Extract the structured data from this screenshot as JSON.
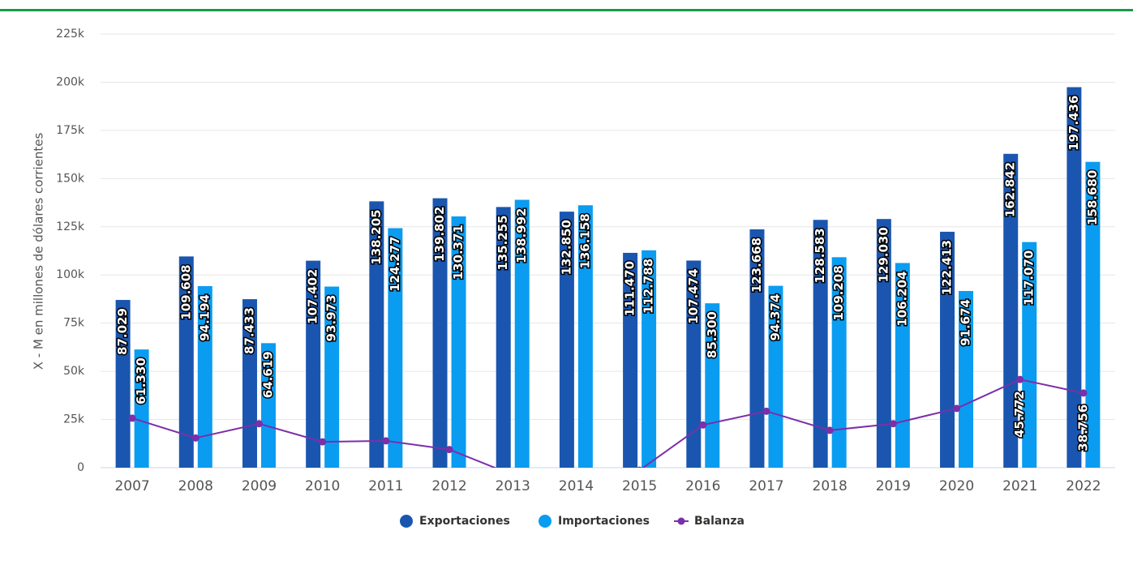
{
  "chart_data": {
    "type": "bar-line",
    "y_axis_label": "X - M en millones de dólares corrientes",
    "categories": [
      "2007",
      "2008",
      "2009",
      "2010",
      "2011",
      "2012",
      "2013",
      "2014",
      "2015",
      "2016",
      "2017",
      "2018",
      "2019",
      "2020",
      "2021",
      "2022"
    ],
    "series": [
      {
        "name": "Exportaciones",
        "type": "bar",
        "color": "#1a56b0",
        "values": [
          87029,
          109608,
          87433,
          107402,
          138205,
          139802,
          135255,
          132850,
          111470,
          107474,
          123668,
          128583,
          129030,
          122413,
          162842,
          197436
        ],
        "value_labels": [
          "87.029",
          "109.608",
          "87.433",
          "107.402",
          "138.205",
          "139.802",
          "135.255",
          "132.850",
          "111.470",
          "107.474",
          "123.668",
          "128.583",
          "129.030",
          "122.413",
          "162.842",
          "197.436"
        ]
      },
      {
        "name": "Importaciones",
        "type": "bar",
        "color": "#0a9cf0",
        "values": [
          61330,
          94194,
          64619,
          93973,
          124277,
          130371,
          138992,
          136158,
          112788,
          85300,
          94374,
          109208,
          106204,
          91674,
          117070,
          158680
        ],
        "value_labels": [
          "61.330",
          "94.194",
          "64.619",
          "93.973",
          "124.277",
          "130.371",
          "138.992",
          "136.158",
          "112.788",
          "85.300",
          "94.374",
          "109.208",
          "106.204",
          "91.674",
          "117.070",
          "158.680"
        ]
      },
      {
        "name": "Balanza",
        "type": "line",
        "color": "#7b2fa8",
        "values": [
          25699,
          15414,
          22814,
          13429,
          13928,
          9431,
          -3737,
          -3308,
          -1318,
          22174,
          29294,
          19375,
          22826,
          30739,
          45772,
          38756
        ],
        "value_labels": [
          null,
          null,
          null,
          null,
          null,
          null,
          null,
          null,
          null,
          null,
          null,
          null,
          null,
          null,
          "45.772",
          "38.756"
        ]
      }
    ],
    "ylim": [
      0,
      225000
    ],
    "yticks": [
      0,
      {
        "value": 25000,
        "label": "25k"
      },
      {
        "value": 50000,
        "label": "50k"
      },
      {
        "value": 75000,
        "label": "75k"
      },
      {
        "value": 100000,
        "label": "100k"
      },
      {
        "value": 125000,
        "label": "125k"
      },
      {
        "value": 150000,
        "label": "150k"
      },
      {
        "value": 175000,
        "label": "175k"
      },
      {
        "value": 200000,
        "label": "200k"
      },
      {
        "value": 225000,
        "label": "225k"
      }
    ],
    "grid": true,
    "legend": "bottom"
  }
}
